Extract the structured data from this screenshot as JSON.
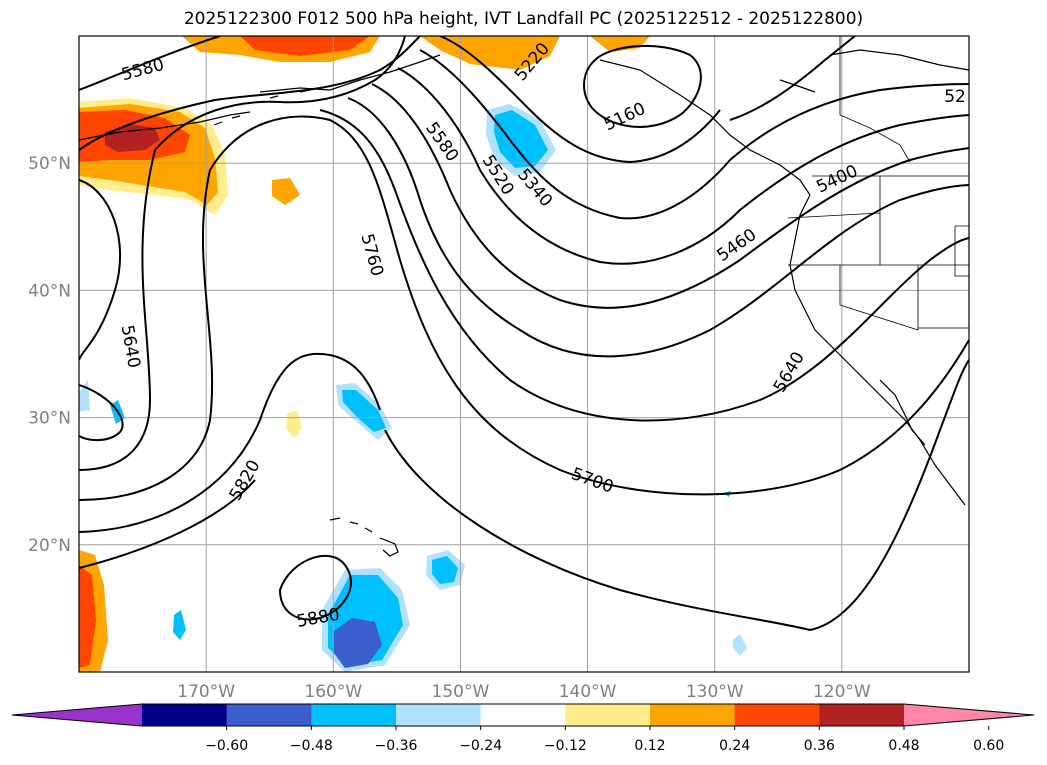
{
  "title": "2025122300 F012 500 hPa height, IVT Landfall PC (2025122512 - 2025122800)",
  "map": {
    "projection": "equirectangular",
    "lon_range": [
      -180,
      -110
    ],
    "lat_range": [
      10,
      60
    ],
    "lat_ticks": [
      {
        "value": 50,
        "label": "50°N"
      },
      {
        "value": 40,
        "label": "40°N"
      },
      {
        "value": 30,
        "label": "30°N"
      },
      {
        "value": 20,
        "label": "20°N"
      }
    ],
    "lon_ticks": [
      {
        "value": -170,
        "label": "170°W"
      },
      {
        "value": -160,
        "label": "160°W"
      },
      {
        "value": -150,
        "label": "150°W"
      },
      {
        "value": -140,
        "label": "140°W"
      },
      {
        "value": -130,
        "label": "130°W"
      },
      {
        "value": -120,
        "label": "120°W"
      }
    ],
    "gridlines": true,
    "contour_labels": [
      {
        "text": "5580",
        "lon": -175.0,
        "lat": 57.4,
        "angle": -15
      },
      {
        "text": "5220",
        "lon": -144.4,
        "lat": 58.0,
        "angle": -50
      },
      {
        "text": "52",
        "lon": -111.1,
        "lat": 55.3,
        "angle": 0
      },
      {
        "text": "5580",
        "lon": -151.4,
        "lat": 51.7,
        "angle": 55
      },
      {
        "text": "5520",
        "lon": -147.0,
        "lat": 49.1,
        "angle": 58
      },
      {
        "text": "5160",
        "lon": -137.1,
        "lat": 53.7,
        "angle": -25
      },
      {
        "text": "5340",
        "lon": -144.1,
        "lat": 48.1,
        "angle": 50
      },
      {
        "text": "5400",
        "lon": -120.4,
        "lat": 48.8,
        "angle": -25
      },
      {
        "text": "5460",
        "lon": -128.3,
        "lat": 43.6,
        "angle": -35
      },
      {
        "text": "5760",
        "lon": -156.9,
        "lat": 42.8,
        "angle": 75
      },
      {
        "text": "5640",
        "lon": -175.9,
        "lat": 35.6,
        "angle": 80
      },
      {
        "text": "5640",
        "lon": -124.2,
        "lat": 33.6,
        "angle": -60
      },
      {
        "text": "5700",
        "lon": -139.6,
        "lat": 25.1,
        "angle": 20
      },
      {
        "text": "5820",
        "lon": -167.0,
        "lat": 25.1,
        "angle": -60
      },
      {
        "text": "5880",
        "lon": -161.2,
        "lat": 14.3,
        "angle": -10
      }
    ],
    "colors": {
      "land": "#000000",
      "contour": "#000000",
      "grid": "#a0a0a0"
    }
  },
  "colorbar": {
    "ticks": [
      "−0.60",
      "−0.48",
      "−0.36",
      "−0.24",
      "−0.12",
      "0.12",
      "0.24",
      "0.36",
      "0.48",
      "0.60"
    ],
    "bins": [
      {
        "color": "#9932cc"
      },
      {
        "color": "#00008b"
      },
      {
        "color": "#3a5fcd"
      },
      {
        "color": "#00bfff"
      },
      {
        "color": "#b0e2ff"
      },
      {
        "color": "#ffffff"
      },
      {
        "color": "#ffec8b"
      },
      {
        "color": "#ffa500"
      },
      {
        "color": "#ff4500"
      },
      {
        "color": "#b22222"
      },
      {
        "color": "#ff88aa"
      }
    ]
  }
}
